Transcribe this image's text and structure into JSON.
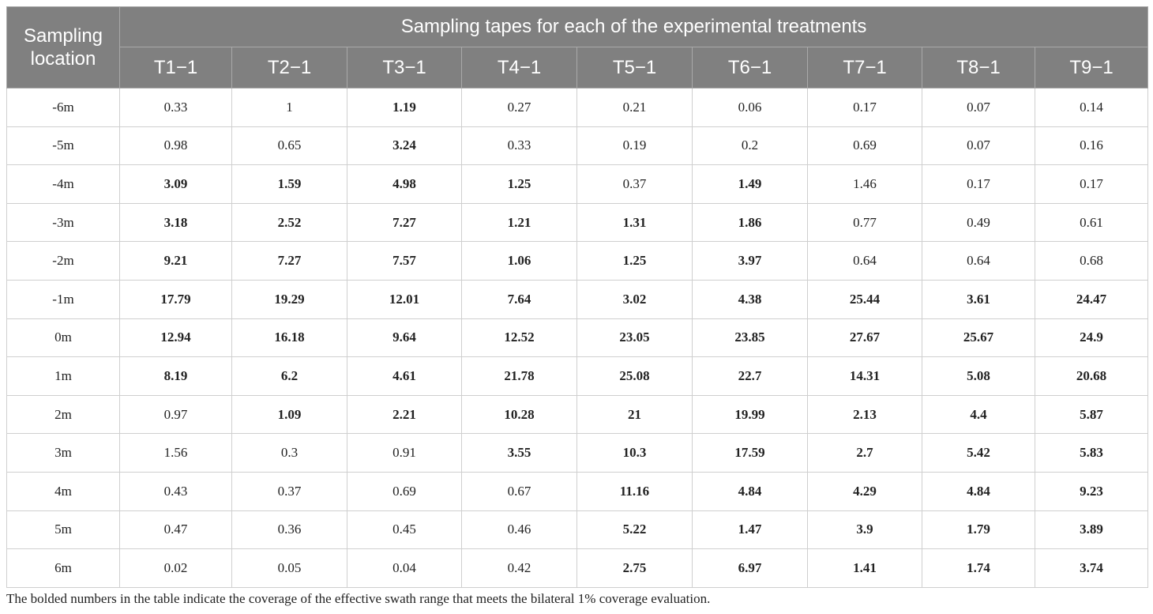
{
  "table": {
    "location_header": "Sampling location",
    "group_header": "Sampling tapes for each of the experimental treatments",
    "columns": [
      "T1−1",
      "T2−1",
      "T3−1",
      "T4−1",
      "T5−1",
      "T6−1",
      "T7−1",
      "T8−1",
      "T9−1"
    ],
    "rows": [
      {
        "location": "-6m",
        "cells": [
          {
            "value": "0.33",
            "bold": false
          },
          {
            "value": "1",
            "bold": false
          },
          {
            "value": "1.19",
            "bold": true
          },
          {
            "value": "0.27",
            "bold": false
          },
          {
            "value": "0.21",
            "bold": false
          },
          {
            "value": "0.06",
            "bold": false
          },
          {
            "value": "0.17",
            "bold": false
          },
          {
            "value": "0.07",
            "bold": false
          },
          {
            "value": "0.14",
            "bold": false
          }
        ]
      },
      {
        "location": "-5m",
        "cells": [
          {
            "value": "0.98",
            "bold": false
          },
          {
            "value": "0.65",
            "bold": false
          },
          {
            "value": "3.24",
            "bold": true
          },
          {
            "value": "0.33",
            "bold": false
          },
          {
            "value": "0.19",
            "bold": false
          },
          {
            "value": "0.2",
            "bold": false
          },
          {
            "value": "0.69",
            "bold": false
          },
          {
            "value": "0.07",
            "bold": false
          },
          {
            "value": "0.16",
            "bold": false
          }
        ]
      },
      {
        "location": "-4m",
        "cells": [
          {
            "value": "3.09",
            "bold": true
          },
          {
            "value": "1.59",
            "bold": true
          },
          {
            "value": "4.98",
            "bold": true
          },
          {
            "value": "1.25",
            "bold": true
          },
          {
            "value": "0.37",
            "bold": false
          },
          {
            "value": "1.49",
            "bold": true
          },
          {
            "value": "1.46",
            "bold": false
          },
          {
            "value": "0.17",
            "bold": false
          },
          {
            "value": "0.17",
            "bold": false
          }
        ]
      },
      {
        "location": "-3m",
        "cells": [
          {
            "value": "3.18",
            "bold": true
          },
          {
            "value": "2.52",
            "bold": true
          },
          {
            "value": "7.27",
            "bold": true
          },
          {
            "value": "1.21",
            "bold": true
          },
          {
            "value": "1.31",
            "bold": true
          },
          {
            "value": "1.86",
            "bold": true
          },
          {
            "value": "0.77",
            "bold": false
          },
          {
            "value": "0.49",
            "bold": false
          },
          {
            "value": "0.61",
            "bold": false
          }
        ]
      },
      {
        "location": "-2m",
        "cells": [
          {
            "value": "9.21",
            "bold": true
          },
          {
            "value": "7.27",
            "bold": true
          },
          {
            "value": "7.57",
            "bold": true
          },
          {
            "value": "1.06",
            "bold": true
          },
          {
            "value": "1.25",
            "bold": true
          },
          {
            "value": "3.97",
            "bold": true
          },
          {
            "value": "0.64",
            "bold": false
          },
          {
            "value": "0.64",
            "bold": false
          },
          {
            "value": "0.68",
            "bold": false
          }
        ]
      },
      {
        "location": "-1m",
        "cells": [
          {
            "value": "17.79",
            "bold": true
          },
          {
            "value": "19.29",
            "bold": true
          },
          {
            "value": "12.01",
            "bold": true
          },
          {
            "value": "7.64",
            "bold": true
          },
          {
            "value": "3.02",
            "bold": true
          },
          {
            "value": "4.38",
            "bold": true
          },
          {
            "value": "25.44",
            "bold": true
          },
          {
            "value": "3.61",
            "bold": true
          },
          {
            "value": "24.47",
            "bold": true
          }
        ]
      },
      {
        "location": "0m",
        "cells": [
          {
            "value": "12.94",
            "bold": true
          },
          {
            "value": "16.18",
            "bold": true
          },
          {
            "value": "9.64",
            "bold": true
          },
          {
            "value": "12.52",
            "bold": true
          },
          {
            "value": "23.05",
            "bold": true
          },
          {
            "value": "23.85",
            "bold": true
          },
          {
            "value": "27.67",
            "bold": true
          },
          {
            "value": "25.67",
            "bold": true
          },
          {
            "value": "24.9",
            "bold": true
          }
        ]
      },
      {
        "location": "1m",
        "cells": [
          {
            "value": "8.19",
            "bold": true
          },
          {
            "value": "6.2",
            "bold": true
          },
          {
            "value": "4.61",
            "bold": true
          },
          {
            "value": "21.78",
            "bold": true
          },
          {
            "value": "25.08",
            "bold": true
          },
          {
            "value": "22.7",
            "bold": true
          },
          {
            "value": "14.31",
            "bold": true
          },
          {
            "value": "5.08",
            "bold": true
          },
          {
            "value": "20.68",
            "bold": true
          }
        ]
      },
      {
        "location": "2m",
        "cells": [
          {
            "value": "0.97",
            "bold": false
          },
          {
            "value": "1.09",
            "bold": true
          },
          {
            "value": "2.21",
            "bold": true
          },
          {
            "value": "10.28",
            "bold": true
          },
          {
            "value": "21",
            "bold": true
          },
          {
            "value": "19.99",
            "bold": true
          },
          {
            "value": "2.13",
            "bold": true
          },
          {
            "value": "4.4",
            "bold": true
          },
          {
            "value": "5.87",
            "bold": true
          }
        ]
      },
      {
        "location": "3m",
        "cells": [
          {
            "value": "1.56",
            "bold": false
          },
          {
            "value": "0.3",
            "bold": false
          },
          {
            "value": "0.91",
            "bold": false
          },
          {
            "value": "3.55",
            "bold": true
          },
          {
            "value": "10.3",
            "bold": true
          },
          {
            "value": "17.59",
            "bold": true
          },
          {
            "value": "2.7",
            "bold": true
          },
          {
            "value": "5.42",
            "bold": true
          },
          {
            "value": "5.83",
            "bold": true
          }
        ]
      },
      {
        "location": "4m",
        "cells": [
          {
            "value": "0.43",
            "bold": false
          },
          {
            "value": "0.37",
            "bold": false
          },
          {
            "value": "0.69",
            "bold": false
          },
          {
            "value": "0.67",
            "bold": false
          },
          {
            "value": "11.16",
            "bold": true
          },
          {
            "value": "4.84",
            "bold": true
          },
          {
            "value": "4.29",
            "bold": true
          },
          {
            "value": "4.84",
            "bold": true
          },
          {
            "value": "9.23",
            "bold": true
          }
        ]
      },
      {
        "location": "5m",
        "cells": [
          {
            "value": "0.47",
            "bold": false
          },
          {
            "value": "0.36",
            "bold": false
          },
          {
            "value": "0.45",
            "bold": false
          },
          {
            "value": "0.46",
            "bold": false
          },
          {
            "value": "5.22",
            "bold": true
          },
          {
            "value": "1.47",
            "bold": true
          },
          {
            "value": "3.9",
            "bold": true
          },
          {
            "value": "1.79",
            "bold": true
          },
          {
            "value": "3.89",
            "bold": true
          }
        ]
      },
      {
        "location": "6m",
        "cells": [
          {
            "value": "0.02",
            "bold": false
          },
          {
            "value": "0.05",
            "bold": false
          },
          {
            "value": "0.04",
            "bold": false
          },
          {
            "value": "0.42",
            "bold": false
          },
          {
            "value": "2.75",
            "bold": true
          },
          {
            "value": "6.97",
            "bold": true
          },
          {
            "value": "1.41",
            "bold": true
          },
          {
            "value": "1.74",
            "bold": true
          },
          {
            "value": "3.74",
            "bold": true
          }
        ]
      }
    ]
  },
  "footnote": "The bolded numbers in the table indicate the coverage of the effective swath range that meets the bilateral 1% coverage evaluation."
}
